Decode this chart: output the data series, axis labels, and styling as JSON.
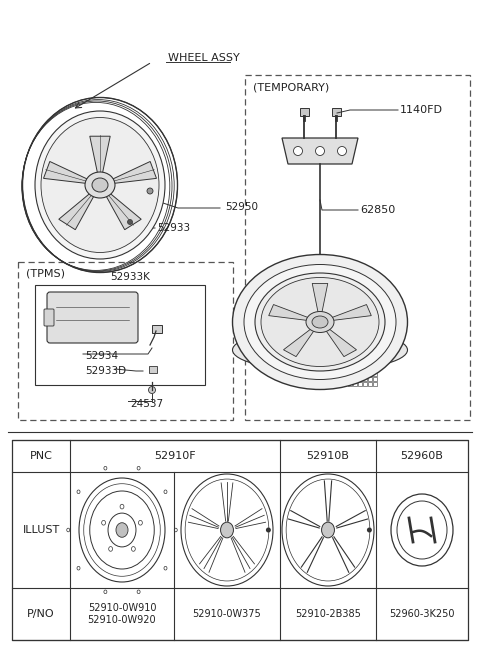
{
  "bg_color": "#ffffff",
  "line_color": "#333333",
  "text_color": "#222222",
  "dash_color": "#555555",
  "labels": {
    "wheel_assy": "WHEEL ASSY",
    "part_52950": "52950",
    "part_52933": "52933",
    "tpms": "(TPMS)",
    "part_52933K": "52933K",
    "part_52934": "52934",
    "part_52933D": "52933D",
    "part_24537": "24537",
    "temporary": "(TEMPORARY)",
    "part_1140FD": "1140FD",
    "part_62850": "62850"
  },
  "table": {
    "pnc_row": [
      "PNC",
      "52910F",
      "52910B",
      "52960B"
    ],
    "illust_label": "ILLUST",
    "pno_label": "P/NO",
    "pno_values": [
      "52910-0W910\n52910-0W920",
      "52910-0W375",
      "52910-2B385",
      "52960-3K250"
    ]
  }
}
